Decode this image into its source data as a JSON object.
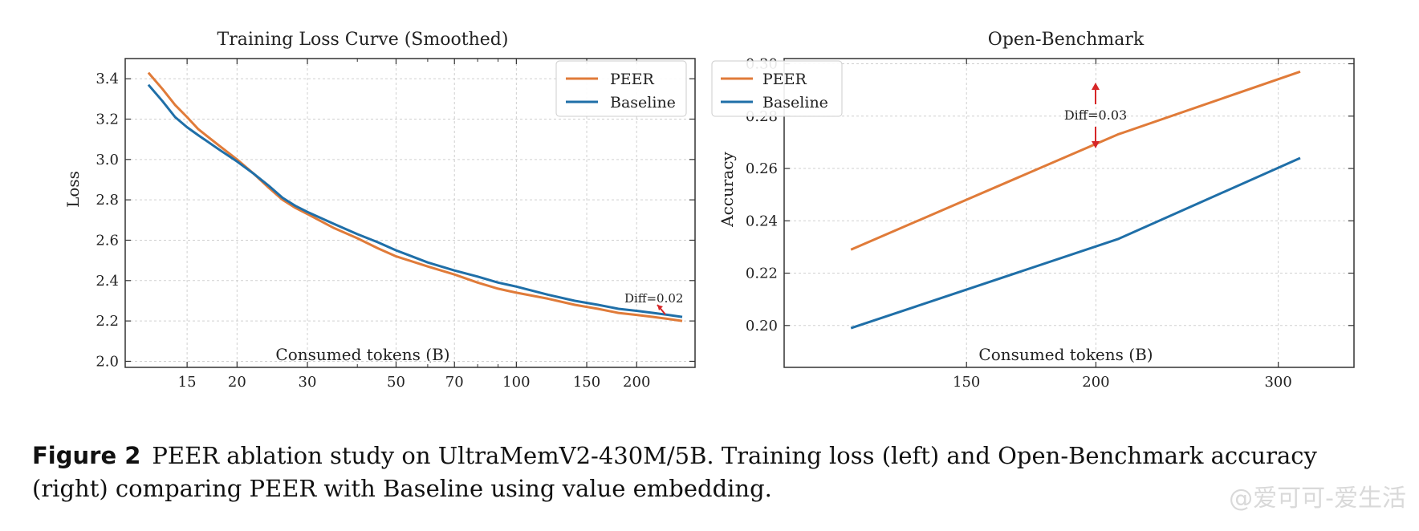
{
  "chart_data": [
    {
      "type": "line",
      "title": "Training Loss Curve (Smoothed)",
      "xlabel": "Consumed tokens (B)",
      "ylabel": "Loss",
      "xscale": "log",
      "xlim": [
        10.5,
        280
      ],
      "ylim": [
        1.97,
        3.5
      ],
      "xticks": [
        15,
        20,
        30,
        50,
        70,
        100,
        150,
        200
      ],
      "yticks": [
        2.0,
        2.2,
        2.4,
        2.6,
        2.8,
        3.0,
        3.2,
        3.4
      ],
      "ytick_labels": [
        "2.0",
        "2.2",
        "2.4",
        "2.6",
        "2.8",
        "3.0",
        "3.2",
        "3.4"
      ],
      "grid": true,
      "legend": "top-right",
      "annotation": "Diff=0.02",
      "series": [
        {
          "name": "PEER",
          "color": "#e07b39",
          "points": [
            [
              12,
              3.43
            ],
            [
              13,
              3.35
            ],
            [
              14,
              3.27
            ],
            [
              15,
              3.21
            ],
            [
              16,
              3.15
            ],
            [
              18,
              3.07
            ],
            [
              20,
              3.0
            ],
            [
              22,
              2.93
            ],
            [
              24,
              2.86
            ],
            [
              26,
              2.8
            ],
            [
              28,
              2.76
            ],
            [
              30,
              2.73
            ],
            [
              35,
              2.66
            ],
            [
              40,
              2.61
            ],
            [
              45,
              2.56
            ],
            [
              50,
              2.52
            ],
            [
              60,
              2.47
            ],
            [
              70,
              2.43
            ],
            [
              80,
              2.39
            ],
            [
              90,
              2.36
            ],
            [
              100,
              2.34
            ],
            [
              120,
              2.31
            ],
            [
              140,
              2.28
            ],
            [
              160,
              2.26
            ],
            [
              180,
              2.24
            ],
            [
              200,
              2.23
            ],
            [
              220,
              2.22
            ],
            [
              240,
              2.21
            ],
            [
              260,
              2.2
            ]
          ]
        },
        {
          "name": "Baseline",
          "color": "#1f6fa8",
          "points": [
            [
              12,
              3.37
            ],
            [
              13,
              3.29
            ],
            [
              14,
              3.21
            ],
            [
              15,
              3.16
            ],
            [
              16,
              3.12
            ],
            [
              18,
              3.05
            ],
            [
              20,
              2.99
            ],
            [
              22,
              2.93
            ],
            [
              24,
              2.87
            ],
            [
              26,
              2.81
            ],
            [
              28,
              2.77
            ],
            [
              30,
              2.74
            ],
            [
              35,
              2.68
            ],
            [
              40,
              2.63
            ],
            [
              45,
              2.59
            ],
            [
              50,
              2.55
            ],
            [
              60,
              2.49
            ],
            [
              70,
              2.45
            ],
            [
              80,
              2.42
            ],
            [
              90,
              2.39
            ],
            [
              100,
              2.37
            ],
            [
              120,
              2.33
            ],
            [
              140,
              2.3
            ],
            [
              160,
              2.28
            ],
            [
              180,
              2.26
            ],
            [
              200,
              2.25
            ],
            [
              220,
              2.24
            ],
            [
              240,
              2.23
            ],
            [
              260,
              2.22
            ]
          ]
        }
      ]
    },
    {
      "type": "line",
      "title": "Open-Benchmark",
      "xlabel": "Consumed tokens (B)",
      "ylabel": "Accuracy",
      "xscale": "log",
      "xlim": [
        100,
        355
      ],
      "ylim": [
        0.184,
        0.302
      ],
      "xticks": [
        150,
        200,
        300
      ],
      "yticks": [
        0.2,
        0.22,
        0.24,
        0.26,
        0.28,
        0.3
      ],
      "ytick_labels": [
        "0.20",
        "0.22",
        "0.24",
        "0.26",
        "0.28",
        "0.30"
      ],
      "grid": true,
      "legend": "top-left",
      "annotation": "Diff=0.03",
      "series": [
        {
          "name": "PEER",
          "color": "#e07b39",
          "points": [
            [
              116,
              0.229
            ],
            [
              210,
              0.273
            ],
            [
              315,
              0.297
            ]
          ]
        },
        {
          "name": "Baseline",
          "color": "#1f6fa8",
          "points": [
            [
              116,
              0.199
            ],
            [
              210,
              0.233
            ],
            [
              315,
              0.264
            ]
          ]
        }
      ]
    }
  ],
  "caption": {
    "label": "Figure 2",
    "text": "PEER ablation study on UltraMemV2-430M/5B. Training loss (left) and Open-Benchmark accuracy (right) comparing PEER with Baseline using value embedding."
  },
  "watermark": "@爱可可-爱生活"
}
